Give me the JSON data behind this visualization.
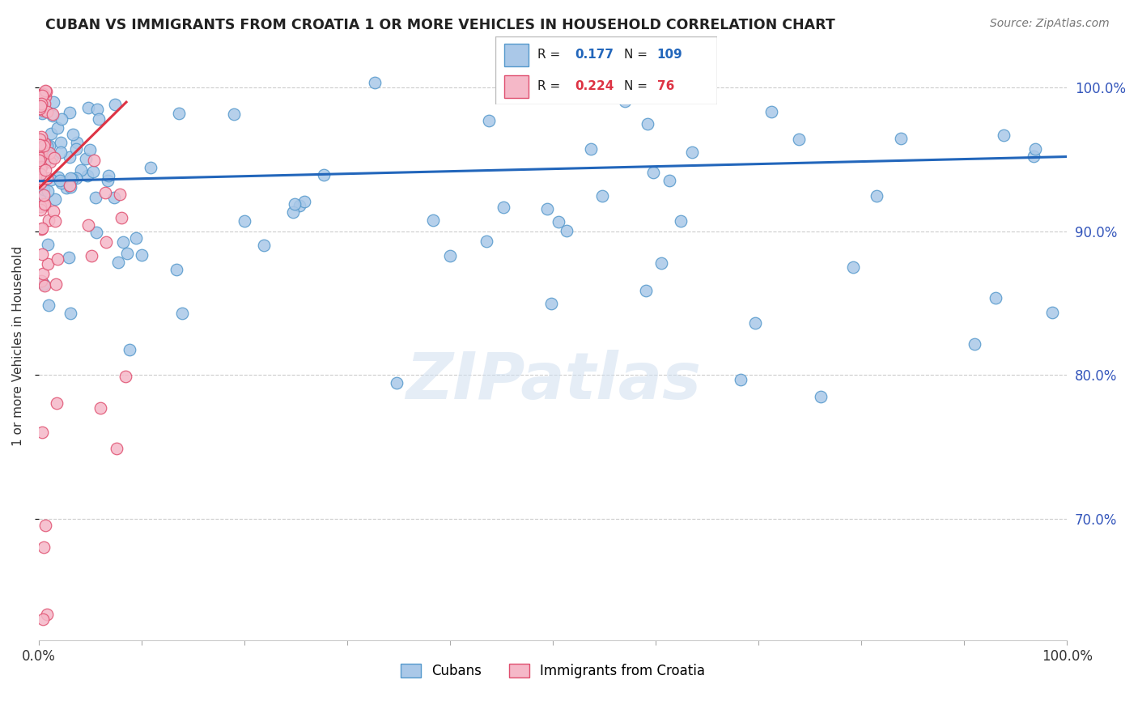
{
  "title": "CUBAN VS IMMIGRANTS FROM CROATIA 1 OR MORE VEHICLES IN HOUSEHOLD CORRELATION CHART",
  "source": "Source: ZipAtlas.com",
  "ylabel": "1 or more Vehicles in Household",
  "legend_label1": "Cubans",
  "legend_label2": "Immigrants from Croatia",
  "R1": 0.177,
  "N1": 109,
  "R2": 0.224,
  "N2": 76,
  "color_cubans_face": "#aac8e8",
  "color_cubans_edge": "#5599cc",
  "color_croatia_face": "#f5b8c8",
  "color_croatia_edge": "#e05070",
  "color_line_blue": "#2266bb",
  "color_line_red": "#dd3344",
  "color_r1": "#2266bb",
  "color_r2": "#dd3344",
  "watermark": "ZIPatlas",
  "xlim": [
    0.0,
    1.0
  ],
  "ylim": [
    0.615,
    1.025
  ],
  "yticks": [
    0.7,
    0.8,
    0.9,
    1.0
  ],
  "ytick_labels": [
    "70.0%",
    "80.0%",
    "90.0%",
    "100.0%"
  ],
  "xtick_left_label": "0.0%",
  "xtick_right_label": "100.0%",
  "blue_line_x": [
    0.0,
    1.0
  ],
  "blue_line_y": [
    0.935,
    0.952
  ],
  "red_line_x": [
    0.0,
    0.085
  ],
  "red_line_y": [
    0.93,
    0.99
  ]
}
